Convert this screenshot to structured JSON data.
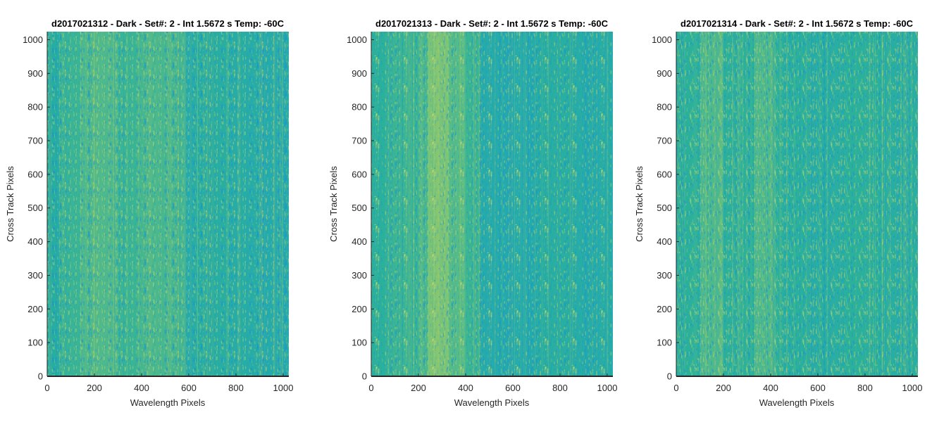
{
  "chart_data": [
    {
      "type": "heatmap",
      "title": "d2017021312 - Dark - Set#: 2 - Int 1.5672 s Temp: -60C",
      "xlabel": "Wavelength Pixels",
      "ylabel": "Cross Track Pixels",
      "xlim": [
        0,
        1024
      ],
      "ylim": [
        0,
        1024
      ],
      "xticks": [
        0,
        200,
        400,
        600,
        800,
        1000
      ],
      "yticks": [
        0,
        100,
        200,
        300,
        400,
        500,
        600,
        700,
        800,
        900,
        1000
      ],
      "grid": false,
      "colors": {
        "low": "#1a9fcf",
        "mid": "#2bb09c",
        "high": "#b8d45a"
      },
      "bands": [
        {
          "x0": 0,
          "x1": 50,
          "level": 0.45
        },
        {
          "x0": 50,
          "x1": 140,
          "level": 0.55
        },
        {
          "x0": 140,
          "x1": 300,
          "level": 0.62
        },
        {
          "x0": 300,
          "x1": 380,
          "level": 0.55
        },
        {
          "x0": 380,
          "x1": 580,
          "level": 0.6
        },
        {
          "x0": 580,
          "x1": 620,
          "level": 0.35
        },
        {
          "x0": 620,
          "x1": 760,
          "level": 0.45
        },
        {
          "x0": 760,
          "x1": 900,
          "level": 0.4
        },
        {
          "x0": 900,
          "x1": 1024,
          "level": 0.35
        }
      ]
    },
    {
      "type": "heatmap",
      "title": "d2017021313 - Dark - Set#: 2 - Int 1.5672 s Temp: -60C",
      "xlabel": "Wavelength Pixels",
      "ylabel": "Cross Track Pixels",
      "xlim": [
        0,
        1024
      ],
      "ylim": [
        0,
        1024
      ],
      "xticks": [
        0,
        200,
        400,
        600,
        800,
        1000
      ],
      "yticks": [
        0,
        100,
        200,
        300,
        400,
        500,
        600,
        700,
        800,
        900,
        1000
      ],
      "grid": false,
      "colors": {
        "low": "#1a9fcf",
        "mid": "#2bb09c",
        "high": "#b8d45a"
      },
      "bands": [
        {
          "x0": 0,
          "x1": 60,
          "level": 0.5
        },
        {
          "x0": 60,
          "x1": 200,
          "level": 0.55
        },
        {
          "x0": 200,
          "x1": 240,
          "level": 0.62
        },
        {
          "x0": 240,
          "x1": 330,
          "level": 0.78
        },
        {
          "x0": 330,
          "x1": 400,
          "level": 0.65
        },
        {
          "x0": 400,
          "x1": 460,
          "level": 0.55
        },
        {
          "x0": 460,
          "x1": 700,
          "level": 0.35
        },
        {
          "x0": 700,
          "x1": 860,
          "level": 0.45
        },
        {
          "x0": 860,
          "x1": 1024,
          "level": 0.4
        }
      ]
    },
    {
      "type": "heatmap",
      "title": "d2017021314 - Dark - Set#: 2 - Int 1.5672 s Temp: -60C",
      "xlabel": "Wavelength Pixels",
      "ylabel": "Cross Track Pixels",
      "xlim": [
        0,
        1024
      ],
      "ylim": [
        0,
        1024
      ],
      "xticks": [
        0,
        200,
        400,
        600,
        800,
        1000
      ],
      "yticks": [
        0,
        100,
        200,
        300,
        400,
        500,
        600,
        700,
        800,
        900,
        1000
      ],
      "grid": false,
      "colors": {
        "low": "#1a9fcf",
        "mid": "#2bb09c",
        "high": "#b8d45a"
      },
      "bands": [
        {
          "x0": 0,
          "x1": 100,
          "level": 0.5
        },
        {
          "x0": 100,
          "x1": 200,
          "level": 0.62
        },
        {
          "x0": 200,
          "x1": 330,
          "level": 0.5
        },
        {
          "x0": 330,
          "x1": 420,
          "level": 0.62
        },
        {
          "x0": 420,
          "x1": 540,
          "level": 0.5
        },
        {
          "x0": 540,
          "x1": 700,
          "level": 0.45
        },
        {
          "x0": 700,
          "x1": 880,
          "level": 0.5
        },
        {
          "x0": 880,
          "x1": 1024,
          "level": 0.45
        }
      ]
    }
  ]
}
